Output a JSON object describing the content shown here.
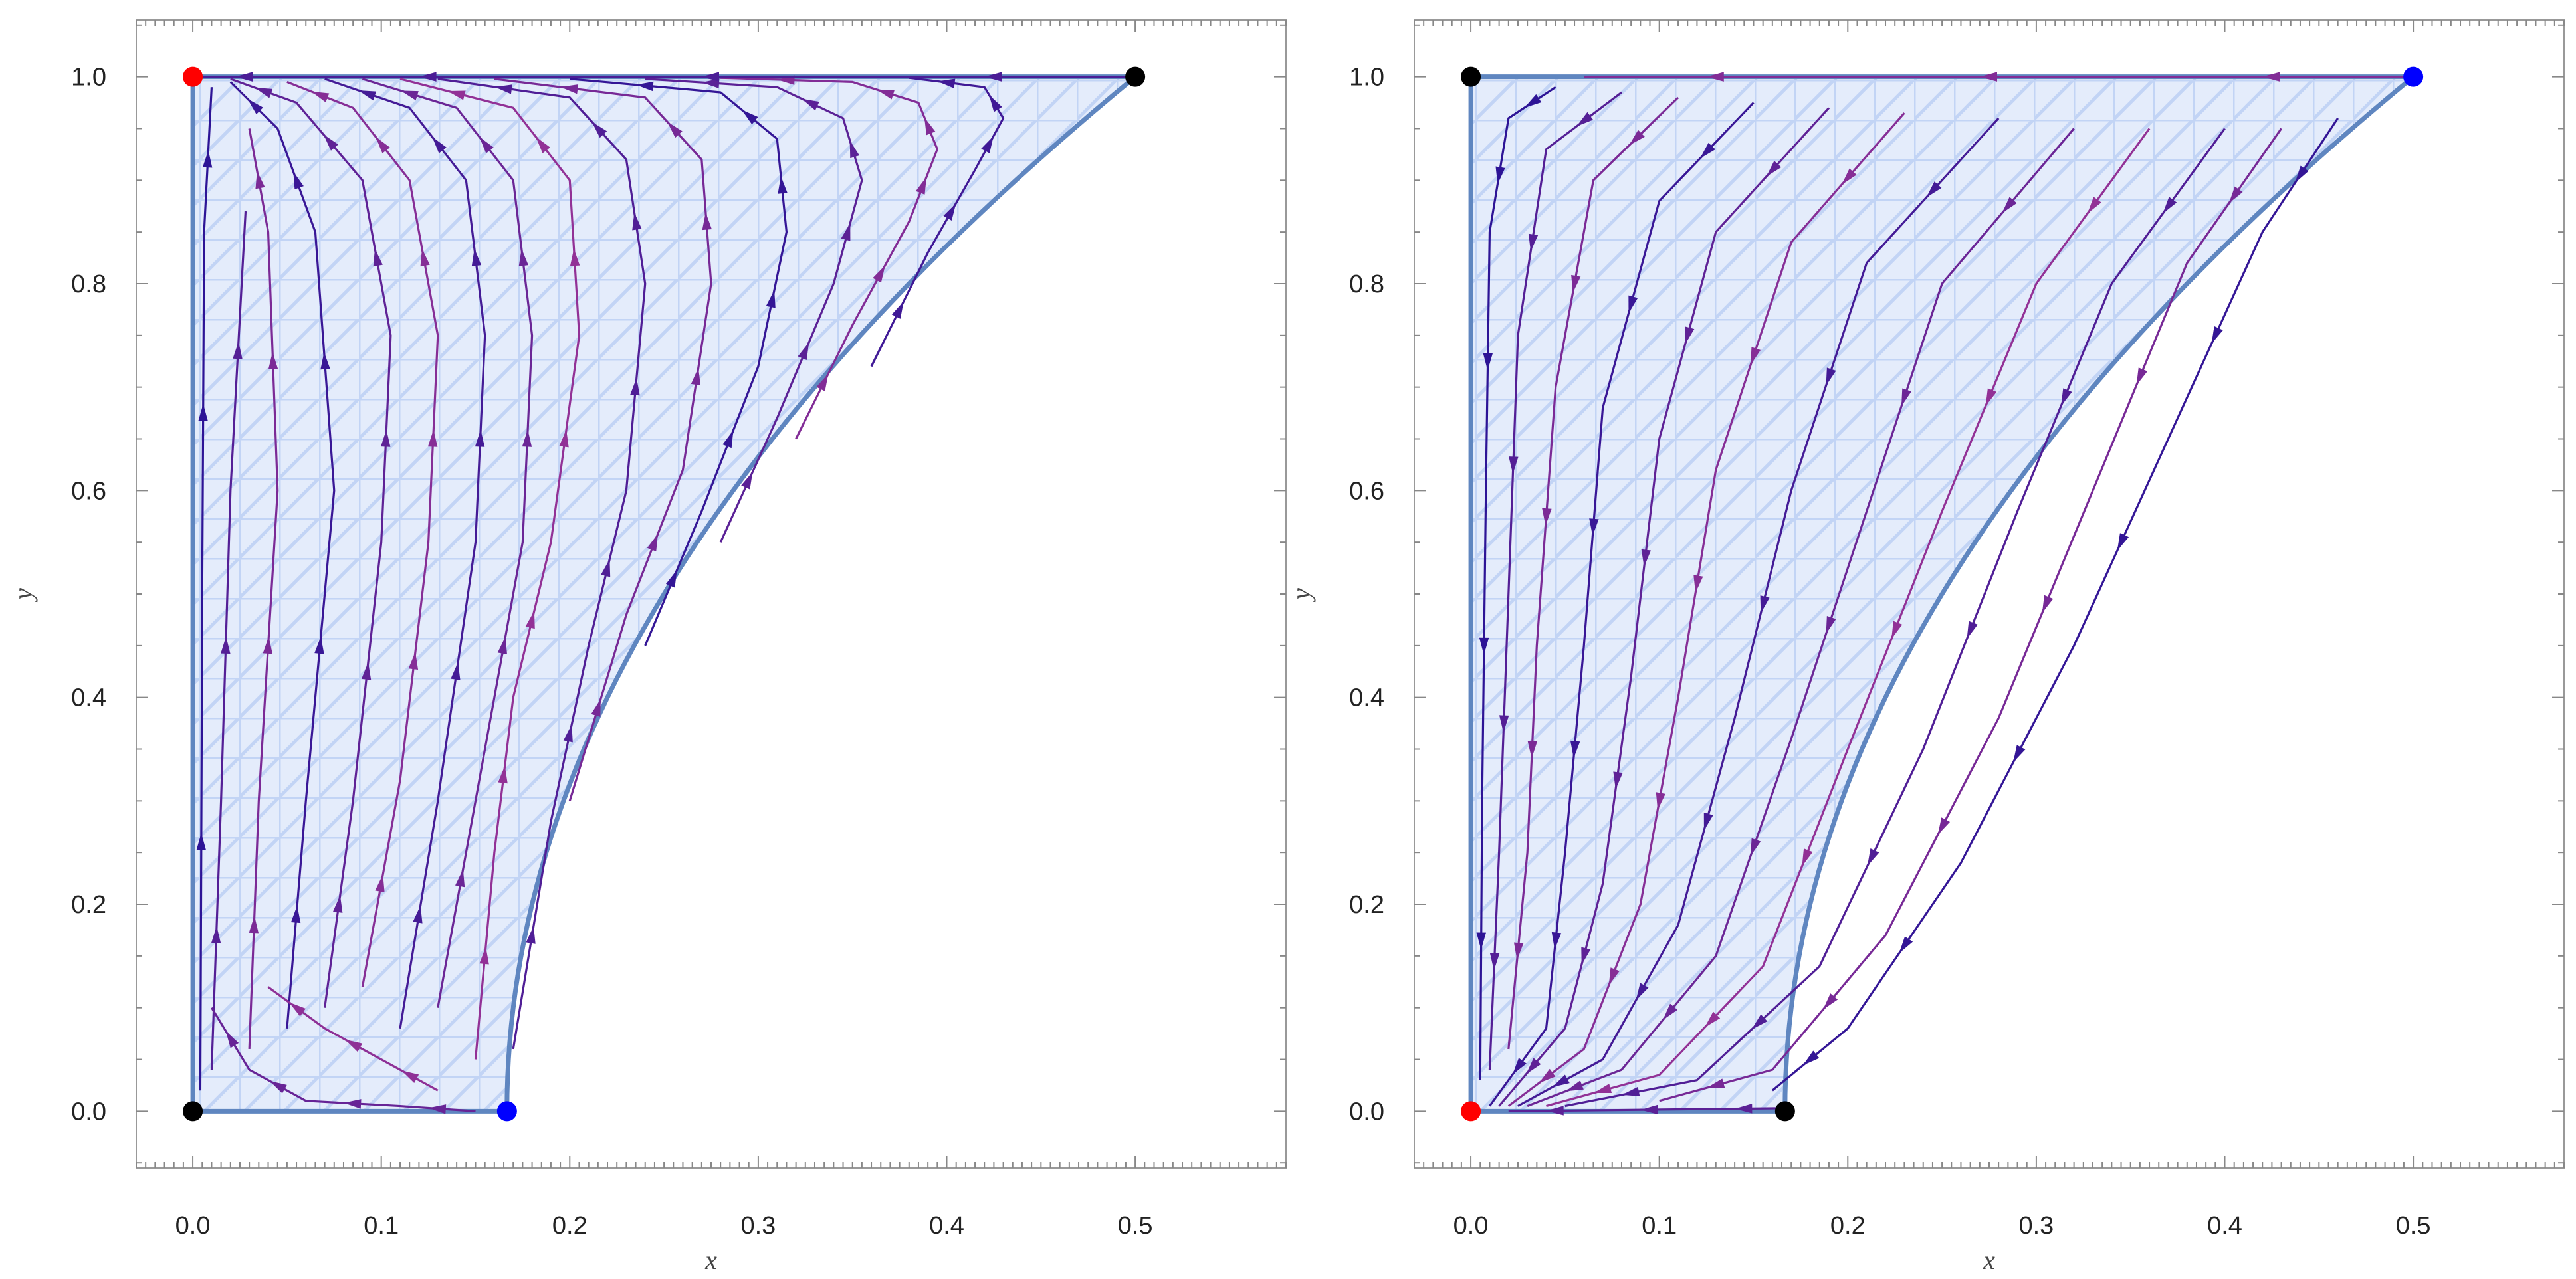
{
  "chart_data": [
    {
      "type": "stream",
      "title": "",
      "xlabel": "x",
      "ylabel": "y",
      "xlim": [
        -0.03,
        0.58
      ],
      "ylim": [
        -0.055,
        1.055
      ],
      "x_ticks": [
        "0.0",
        "0.1",
        "0.2",
        "0.3",
        "0.4",
        "0.5"
      ],
      "y_ticks": [
        "0.0",
        "0.2",
        "0.4",
        "0.6",
        "0.8",
        "1.0"
      ],
      "region": {
        "boundary": "x from 0 to 1/6 + y^2/3, y from 0 to 1"
      },
      "flow_direction": "toward (0,1) from (1/6,0)",
      "fixed_points": [
        {
          "x": 0.0,
          "y": 1.0,
          "color": "#ff0000"
        },
        {
          "x": 0.5,
          "y": 1.0,
          "color": "#000000"
        },
        {
          "x": 0.0,
          "y": 0.0,
          "color": "#000000"
        },
        {
          "x": 0.1667,
          "y": 0.0,
          "color": "#0000ff"
        }
      ],
      "streamlines": [
        [
          [
            0.004,
            0.02
          ],
          [
            0.005,
            0.5
          ],
          [
            0.006,
            0.85
          ],
          [
            0.01,
            0.99
          ]
        ],
        [
          [
            0.01,
            0.04
          ],
          [
            0.015,
            0.3
          ],
          [
            0.02,
            0.6
          ],
          [
            0.028,
            0.87
          ]
        ],
        [
          [
            0.03,
            0.06
          ],
          [
            0.035,
            0.3
          ],
          [
            0.045,
            0.6
          ],
          [
            0.04,
            0.85
          ],
          [
            0.03,
            0.95
          ]
        ],
        [
          [
            0.05,
            0.08
          ],
          [
            0.06,
            0.3
          ],
          [
            0.075,
            0.6
          ],
          [
            0.065,
            0.85
          ],
          [
            0.045,
            0.95
          ],
          [
            0.02,
            0.995
          ]
        ],
        [
          [
            0.07,
            0.1
          ],
          [
            0.085,
            0.3
          ],
          [
            0.1,
            0.55
          ],
          [
            0.105,
            0.75
          ],
          [
            0.09,
            0.9
          ],
          [
            0.055,
            0.975
          ],
          [
            0.02,
            0.998
          ]
        ],
        [
          [
            0.09,
            0.12
          ],
          [
            0.11,
            0.32
          ],
          [
            0.125,
            0.55
          ],
          [
            0.13,
            0.75
          ],
          [
            0.115,
            0.9
          ],
          [
            0.085,
            0.97
          ],
          [
            0.05,
            0.995
          ]
        ],
        [
          [
            0.11,
            0.08
          ],
          [
            0.13,
            0.3
          ],
          [
            0.15,
            0.55
          ],
          [
            0.155,
            0.75
          ],
          [
            0.145,
            0.9
          ],
          [
            0.115,
            0.97
          ],
          [
            0.07,
            0.998
          ]
        ],
        [
          [
            0.13,
            0.1
          ],
          [
            0.155,
            0.35
          ],
          [
            0.175,
            0.55
          ],
          [
            0.18,
            0.75
          ],
          [
            0.17,
            0.9
          ],
          [
            0.14,
            0.97
          ],
          [
            0.09,
            0.998
          ]
        ],
        [
          [
            0.15,
            0.05
          ],
          [
            0.16,
            0.25
          ],
          [
            0.17,
            0.4
          ],
          [
            0.19,
            0.55
          ],
          [
            0.205,
            0.75
          ],
          [
            0.2,
            0.9
          ],
          [
            0.17,
            0.97
          ],
          [
            0.11,
            0.998
          ]
        ],
        [
          [
            0.17,
            0.06
          ],
          [
            0.19,
            0.28
          ],
          [
            0.21,
            0.45
          ],
          [
            0.23,
            0.6
          ],
          [
            0.24,
            0.8
          ],
          [
            0.23,
            0.92
          ],
          [
            0.2,
            0.98
          ],
          [
            0.13,
            0.998
          ]
        ],
        [
          [
            0.2,
            0.3
          ],
          [
            0.23,
            0.48
          ],
          [
            0.26,
            0.62
          ],
          [
            0.275,
            0.8
          ],
          [
            0.27,
            0.92
          ],
          [
            0.24,
            0.98
          ],
          [
            0.16,
            0.998
          ]
        ],
        [
          [
            0.24,
            0.45
          ],
          [
            0.27,
            0.58
          ],
          [
            0.3,
            0.72
          ],
          [
            0.315,
            0.85
          ],
          [
            0.31,
            0.94
          ],
          [
            0.28,
            0.985
          ],
          [
            0.2,
            0.998
          ]
        ],
        [
          [
            0.28,
            0.55
          ],
          [
            0.31,
            0.67
          ],
          [
            0.34,
            0.8
          ],
          [
            0.355,
            0.9
          ],
          [
            0.345,
            0.96
          ],
          [
            0.31,
            0.99
          ],
          [
            0.24,
            0.998
          ]
        ],
        [
          [
            0.32,
            0.65
          ],
          [
            0.35,
            0.76
          ],
          [
            0.38,
            0.86
          ],
          [
            0.395,
            0.93
          ],
          [
            0.385,
            0.975
          ],
          [
            0.35,
            0.995
          ],
          [
            0.28,
            0.999
          ]
        ],
        [
          [
            0.36,
            0.72
          ],
          [
            0.39,
            0.83
          ],
          [
            0.415,
            0.91
          ],
          [
            0.43,
            0.96
          ],
          [
            0.42,
            0.99
          ],
          [
            0.38,
            0.999
          ]
        ],
        [
          [
            0.15,
            0.0
          ],
          [
            0.11,
            0.005
          ],
          [
            0.06,
            0.01
          ],
          [
            0.03,
            0.04
          ],
          [
            0.01,
            0.1
          ]
        ],
        [
          [
            0.13,
            0.02
          ],
          [
            0.1,
            0.05
          ],
          [
            0.07,
            0.08
          ],
          [
            0.04,
            0.12
          ]
        ],
        [
          [
            0.5,
            1.0
          ],
          [
            0.35,
            1.0
          ],
          [
            0.2,
            1.0
          ],
          [
            0.05,
            1.0
          ],
          [
            0.005,
            1.0
          ]
        ]
      ]
    },
    {
      "type": "stream",
      "title": "",
      "xlabel": "x",
      "ylabel": "y",
      "xlim": [
        -0.03,
        0.58
      ],
      "ylim": [
        -0.055,
        1.055
      ],
      "x_ticks": [
        "0.0",
        "0.1",
        "0.2",
        "0.3",
        "0.4",
        "0.5"
      ],
      "y_ticks": [
        "0.0",
        "0.2",
        "0.4",
        "0.6",
        "0.8",
        "1.0"
      ],
      "region": {
        "boundary": "x from 0 to 1/6 + y^2/3, y from 0 to 1"
      },
      "flow_direction": "toward (0,0) from (0.5,1)",
      "fixed_points": [
        {
          "x": 0.0,
          "y": 1.0,
          "color": "#000000"
        },
        {
          "x": 0.5,
          "y": 1.0,
          "color": "#0000ff"
        },
        {
          "x": 0.0,
          "y": 0.0,
          "color": "#ff0000"
        },
        {
          "x": 0.1667,
          "y": 0.0,
          "color": "#000000"
        }
      ],
      "streamlines": [
        [
          [
            0.045,
            0.99
          ],
          [
            0.02,
            0.96
          ],
          [
            0.01,
            0.85
          ],
          [
            0.008,
            0.6
          ],
          [
            0.006,
            0.3
          ],
          [
            0.005,
            0.03
          ]
        ],
        [
          [
            0.08,
            0.985
          ],
          [
            0.04,
            0.93
          ],
          [
            0.025,
            0.75
          ],
          [
            0.02,
            0.5
          ],
          [
            0.015,
            0.25
          ],
          [
            0.01,
            0.04
          ]
        ],
        [
          [
            0.11,
            0.98
          ],
          [
            0.065,
            0.9
          ],
          [
            0.045,
            0.7
          ],
          [
            0.035,
            0.45
          ],
          [
            0.03,
            0.25
          ],
          [
            0.02,
            0.06
          ]
        ],
        [
          [
            0.15,
            0.975
          ],
          [
            0.1,
            0.88
          ],
          [
            0.07,
            0.68
          ],
          [
            0.06,
            0.45
          ],
          [
            0.05,
            0.25
          ],
          [
            0.04,
            0.08
          ],
          [
            0.01,
            0.005
          ]
        ],
        [
          [
            0.19,
            0.97
          ],
          [
            0.13,
            0.85
          ],
          [
            0.1,
            0.65
          ],
          [
            0.085,
            0.42
          ],
          [
            0.07,
            0.22
          ],
          [
            0.05,
            0.08
          ],
          [
            0.015,
            0.005
          ]
        ],
        [
          [
            0.23,
            0.965
          ],
          [
            0.17,
            0.84
          ],
          [
            0.13,
            0.62
          ],
          [
            0.11,
            0.4
          ],
          [
            0.09,
            0.2
          ],
          [
            0.06,
            0.06
          ],
          [
            0.02,
            0.005
          ]
        ],
        [
          [
            0.28,
            0.96
          ],
          [
            0.21,
            0.82
          ],
          [
            0.17,
            0.6
          ],
          [
            0.14,
            0.38
          ],
          [
            0.11,
            0.18
          ],
          [
            0.07,
            0.05
          ],
          [
            0.025,
            0.005
          ]
        ],
        [
          [
            0.32,
            0.95
          ],
          [
            0.25,
            0.8
          ],
          [
            0.21,
            0.58
          ],
          [
            0.17,
            0.36
          ],
          [
            0.13,
            0.15
          ],
          [
            0.08,
            0.04
          ],
          [
            0.03,
            0.005
          ]
        ],
        [
          [
            0.36,
            0.95
          ],
          [
            0.3,
            0.8
          ],
          [
            0.25,
            0.58
          ],
          [
            0.2,
            0.35
          ],
          [
            0.155,
            0.14
          ],
          [
            0.1,
            0.035
          ],
          [
            0.04,
            0.005
          ]
        ],
        [
          [
            0.4,
            0.95
          ],
          [
            0.34,
            0.8
          ],
          [
            0.29,
            0.58
          ],
          [
            0.24,
            0.35
          ],
          [
            0.185,
            0.14
          ],
          [
            0.12,
            0.03
          ],
          [
            0.05,
            0.005
          ]
        ],
        [
          [
            0.43,
            0.95
          ],
          [
            0.38,
            0.82
          ],
          [
            0.33,
            0.6
          ],
          [
            0.28,
            0.38
          ],
          [
            0.22,
            0.17
          ],
          [
            0.16,
            0.04
          ],
          [
            0.1,
            0.01
          ]
        ],
        [
          [
            0.46,
            0.96
          ],
          [
            0.42,
            0.85
          ],
          [
            0.37,
            0.65
          ],
          [
            0.32,
            0.45
          ],
          [
            0.26,
            0.24
          ],
          [
            0.2,
            0.08
          ],
          [
            0.16,
            0.02
          ]
        ],
        [
          [
            0.17,
            0.003
          ],
          [
            0.12,
            0.002
          ],
          [
            0.07,
            0.001
          ],
          [
            0.02,
            0.0
          ]
        ],
        [
          [
            0.5,
            1.0
          ],
          [
            0.35,
            1.0
          ],
          [
            0.2,
            1.0
          ],
          [
            0.06,
            1.0
          ]
        ]
      ]
    }
  ]
}
